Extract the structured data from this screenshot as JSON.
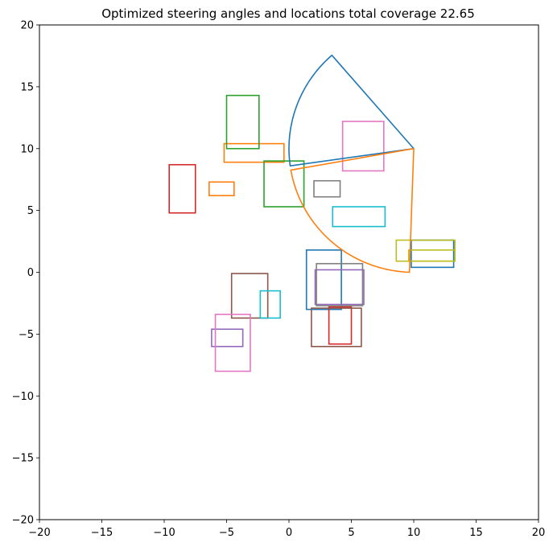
{
  "chart_data": {
    "type": "scatter",
    "title": "Optimized steering angles and locations total coverage 22.65",
    "xlabel": "",
    "ylabel": "",
    "xlim": [
      -20,
      20
    ],
    "ylim": [
      -20,
      20
    ],
    "xticks": [
      -20,
      -15,
      -10,
      -5,
      0,
      5,
      10,
      15,
      20
    ],
    "yticks": [
      -20,
      -15,
      -10,
      -5,
      0,
      5,
      10,
      15,
      20
    ],
    "xtick_labels": [
      "−20",
      "−15",
      "−10",
      "−5",
      "0",
      "5",
      "10",
      "15",
      "20"
    ],
    "ytick_labels": [
      "−20",
      "−15",
      "−10",
      "−5",
      "0",
      "5",
      "10",
      "15",
      "20"
    ],
    "grid": false,
    "colors": {
      "blue": "#1f77b4",
      "orange": "#ff7f0e",
      "green": "#2ca02c",
      "red": "#d62728",
      "purple": "#9467bd",
      "brown": "#8c564b",
      "pink": "#e377c2",
      "gray": "#7f7f7f",
      "olive": "#bcbd22",
      "cyan": "#17becf"
    },
    "rectangles": [
      {
        "color": "blue",
        "x0": 1.4,
        "y0": -3.0,
        "x1": 4.2,
        "y1": 1.8
      },
      {
        "color": "blue",
        "x0": 9.8,
        "y0": 0.4,
        "x1": 13.2,
        "y1": 2.6
      },
      {
        "color": "orange",
        "x0": -5.2,
        "y0": 8.9,
        "x1": -0.4,
        "y1": 10.4
      },
      {
        "color": "orange",
        "x0": -6.4,
        "y0": 6.2,
        "x1": -4.4,
        "y1": 7.3
      },
      {
        "color": "green",
        "x0": -5.0,
        "y0": 10.0,
        "x1": -2.4,
        "y1": 14.3
      },
      {
        "color": "green",
        "x0": -2.0,
        "y0": 5.3,
        "x1": 1.2,
        "y1": 9.0
      },
      {
        "color": "red",
        "x0": -9.6,
        "y0": 4.8,
        "x1": -7.5,
        "y1": 8.7
      },
      {
        "color": "red",
        "x0": 3.2,
        "y0": -5.8,
        "x1": 5.0,
        "y1": -2.8
      },
      {
        "color": "purple",
        "x0": 2.1,
        "y0": -2.6,
        "x1": 6.0,
        "y1": 0.2
      },
      {
        "color": "purple",
        "x0": -6.2,
        "y0": -6.0,
        "x1": -3.7,
        "y1": -4.6
      },
      {
        "color": "brown",
        "x0": -4.6,
        "y0": -3.7,
        "x1": -1.7,
        "y1": -0.1
      },
      {
        "color": "brown",
        "x0": 1.8,
        "y0": -6.0,
        "x1": 5.8,
        "y1": -2.9
      },
      {
        "color": "pink",
        "x0": 4.3,
        "y0": 8.2,
        "x1": 7.6,
        "y1": 12.2
      },
      {
        "color": "pink",
        "x0": -5.9,
        "y0": -8.0,
        "x1": -3.1,
        "y1": -3.4
      },
      {
        "color": "gray",
        "x0": 2.0,
        "y0": 6.1,
        "x1": 4.1,
        "y1": 7.4
      },
      {
        "color": "gray",
        "x0": 2.2,
        "y0": -2.7,
        "x1": 5.9,
        "y1": 0.7
      },
      {
        "color": "olive",
        "x0": 8.6,
        "y0": 0.9,
        "x1": 13.3,
        "y1": 2.6
      },
      {
        "color": "olive",
        "x0": 9.6,
        "y0": 0.9,
        "x1": 13.3,
        "y1": 1.8
      },
      {
        "color": "cyan",
        "x0": 3.5,
        "y0": 3.7,
        "x1": 7.7,
        "y1": 5.3
      },
      {
        "color": "cyan",
        "x0": -2.3,
        "y0": -3.7,
        "x1": -0.7,
        "y1": -1.5
      }
    ],
    "sectors": [
      {
        "color": "blue",
        "cx": 10.0,
        "cy": 10.0,
        "r": 10.0,
        "start_deg": 131,
        "end_deg": 188
      },
      {
        "color": "orange",
        "cx": 10.0,
        "cy": 10.0,
        "r": 10.0,
        "start_deg": 190,
        "end_deg": 268
      }
    ]
  }
}
